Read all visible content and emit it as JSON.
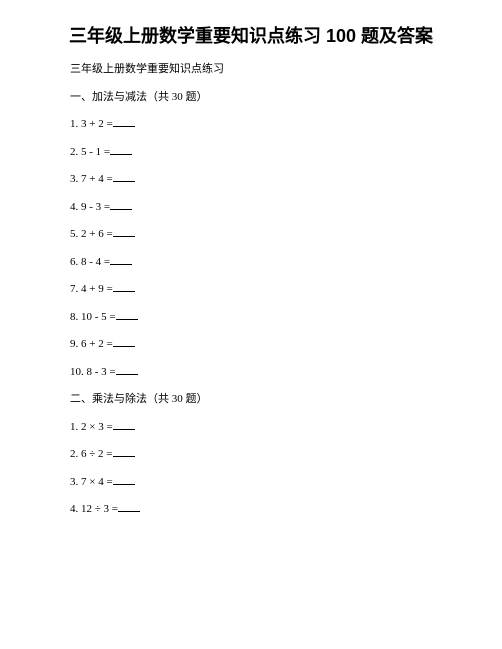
{
  "title": "三年级上册数学重要知识点练习 100 题及答案",
  "subtitle": "三年级上册数学重要知识点练习",
  "section1": {
    "heading": "一、加法与减法（共 30 题）",
    "items": [
      "1. 3 + 2 =",
      "2. 5 - 1 =",
      "3. 7 + 4 =",
      "4. 9 - 3 =",
      "5. 2 + 6 =",
      "6. 8 - 4 =",
      "7. 4 + 9 =",
      "8. 10 - 5 =",
      "9. 6 + 2 =",
      "10. 8 - 3 ="
    ]
  },
  "section2": {
    "heading": "二、乘法与除法（共 30 题）",
    "items": [
      "1. 2 × 3 =",
      "2. 6 ÷ 2 =",
      "3. 7 × 4 =",
      "4. 12 ÷ 3 ="
    ]
  }
}
